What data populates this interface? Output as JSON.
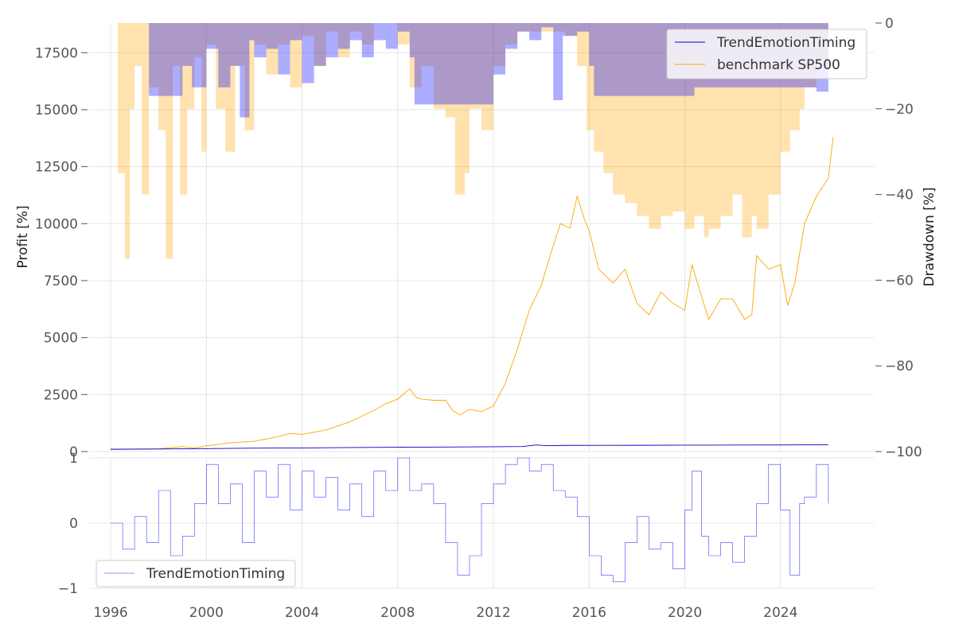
{
  "chart_data": [
    {
      "id": "profit_drawdown",
      "type": "line",
      "title": "",
      "xlabel": "",
      "ylabel": "Profit [%]",
      "y2label": "Drawdown [%]",
      "xlim": [
        1995.1,
        2027.9
      ],
      "ylim": [
        0,
        18800
      ],
      "y2lim": [
        -100,
        0
      ],
      "grid": true,
      "legend_location": "top-right",
      "y_ticks": [
        0,
        2500,
        5000,
        7500,
        10000,
        12500,
        15000,
        17500
      ],
      "y_tick_labels": [
        "0",
        "2500",
        "5000",
        "7500",
        "10000",
        "12500",
        "15000",
        "17500"
      ],
      "y2_ticks": [
        0,
        -20,
        -40,
        -60,
        -80,
        -100
      ],
      "y2_tick_labels": [
        "0",
        "−20",
        "−40",
        "−60",
        "−80",
        "−100"
      ],
      "series": [
        {
          "name": "TrendEmotionTiming",
          "role": "profit",
          "color": "#0000cc",
          "x": [
            1996.0,
            1998.0,
            2000.0,
            2002.0,
            2004.0,
            2006.0,
            2008.0,
            2010.0,
            2012.0,
            2013.2,
            2013.8,
            2014.2,
            2015.0,
            2018.0,
            2020.0,
            2022.0,
            2024.0,
            2026.0
          ],
          "values": [
            100,
            110,
            130,
            150,
            160,
            175,
            190,
            200,
            210,
            220,
            290,
            260,
            270,
            275,
            280,
            285,
            290,
            300
          ]
        },
        {
          "name": "benchmark SP500",
          "role": "profit",
          "color": "#ffa500",
          "x": [
            1996.0,
            1997.0,
            1998.0,
            1999.0,
            1999.5,
            2000.0,
            2001.0,
            2002.0,
            2003.0,
            2003.5,
            2004.0,
            2005.0,
            2006.0,
            2007.0,
            2007.5,
            2008.0,
            2008.5,
            2008.8,
            2009.0,
            2009.5,
            2010.0,
            2010.3,
            2010.6,
            2011.0,
            2011.5,
            2012.0,
            2012.5,
            2013.0,
            2013.5,
            2014.0,
            2014.4,
            2014.8,
            2015.2,
            2015.5,
            2015.8,
            2016.0,
            2016.4,
            2017.0,
            2017.5,
            2018.0,
            2018.5,
            2019.0,
            2019.5,
            2020.0,
            2020.3,
            2020.7,
            2021.0,
            2021.5,
            2022.0,
            2022.5,
            2022.8,
            2023.0,
            2023.5,
            2024.0,
            2024.3,
            2024.6,
            2025.0,
            2025.5,
            2026.0,
            2026.2
          ],
          "values": [
            100,
            110,
            120,
            220,
            160,
            250,
            380,
            450,
            650,
            800,
            750,
            950,
            1300,
            1800,
            2100,
            2300,
            2750,
            2350,
            2300,
            2250,
            2250,
            1800,
            1600,
            1850,
            1750,
            2000,
            3000,
            4500,
            6200,
            7300,
            8700,
            10000,
            9800,
            11200,
            10200,
            9700,
            8000,
            7400,
            8000,
            6500,
            6000,
            7000,
            6500,
            6200,
            8200,
            6800,
            5800,
            6700,
            6700,
            5800,
            6000,
            8600,
            8000,
            8200,
            6400,
            7400,
            10000,
            11200,
            12000,
            13800
          ]
        },
        {
          "name": "TrendEmotionTiming drawdown",
          "role": "drawdown",
          "color": "#0000ff",
          "x": [
            1996.0,
            1997.5,
            1997.6,
            1998.5,
            1999.0,
            1999.4,
            2000.0,
            2000.5,
            2001.0,
            2001.4,
            2001.8,
            2002.0,
            2002.5,
            2003.0,
            2003.5,
            2004.0,
            2004.5,
            2005.0,
            2005.5,
            2006.0,
            2006.5,
            2007.0,
            2007.5,
            2008.0,
            2008.5,
            2008.7,
            2010.0,
            2011.0,
            2012.0,
            2012.5,
            2013.0,
            2013.5,
            2014.0,
            2014.5,
            2014.9,
            2015.5,
            2016.0,
            2016.2,
            2017.0,
            2018.0,
            2019.0,
            2020.0,
            2020.4,
            2021.0,
            2021.5,
            2022.0,
            2023.0,
            2024.0,
            2024.5,
            2025.0,
            2025.5,
            2026.0
          ],
          "values": [
            0,
            0,
            -17,
            -17,
            -10,
            -15,
            -6,
            -15,
            -10,
            -22,
            -4,
            -8,
            -6,
            -12,
            -4,
            -14,
            -10,
            -8,
            -6,
            -4,
            -8,
            -4,
            -6,
            -2,
            -8,
            -19,
            -19,
            -19,
            -12,
            -6,
            -2,
            -4,
            -1,
            -18,
            -3,
            -2,
            -10,
            -17,
            -17,
            -17,
            -17,
            -17,
            -15,
            -15,
            -15,
            -15,
            -15,
            -15,
            -15,
            -15,
            -16,
            -16
          ]
        },
        {
          "name": "benchmark SP500 drawdown",
          "role": "drawdown",
          "color": "#ffa500",
          "x": [
            1996.0,
            1996.3,
            1996.6,
            1996.8,
            1997.0,
            1997.3,
            1997.6,
            1998.0,
            1998.3,
            1998.6,
            1998.9,
            1999.2,
            1999.5,
            1999.8,
            2000.0,
            2000.4,
            2000.8,
            2001.2,
            2001.6,
            2002.0,
            2002.5,
            2003.0,
            2003.5,
            2004.0,
            2004.5,
            2005.0,
            2005.5,
            2006.0,
            2006.5,
            2007.0,
            2008.0,
            2008.5,
            2009.0,
            2009.5,
            2010.0,
            2010.4,
            2010.8,
            2011.0,
            2011.5,
            2012.0,
            2012.5,
            2013.0,
            2014.0,
            2015.0,
            2015.5,
            2015.9,
            2016.2,
            2016.6,
            2017.0,
            2017.5,
            2018.0,
            2018.5,
            2019.0,
            2019.5,
            2020.0,
            2020.4,
            2020.8,
            2021.0,
            2021.5,
            2022.0,
            2022.4,
            2022.8,
            2023.0,
            2023.5,
            2024.0,
            2024.4,
            2024.8,
            2025.0,
            2025.5,
            2026.0
          ],
          "values": [
            0,
            -35,
            -55,
            -20,
            -10,
            -40,
            -15,
            -25,
            -55,
            -10,
            -40,
            -20,
            -8,
            -30,
            -5,
            -20,
            -30,
            -10,
            -25,
            -5,
            -12,
            -5,
            -15,
            -3,
            -10,
            -2,
            -8,
            -2,
            -5,
            0,
            -5,
            -15,
            -10,
            -20,
            -22,
            -40,
            -35,
            -20,
            -25,
            -10,
            -5,
            -2,
            -2,
            -3,
            -10,
            -25,
            -30,
            -35,
            -40,
            -42,
            -45,
            -48,
            -45,
            -44,
            -48,
            -45,
            -50,
            -48,
            -45,
            -40,
            -50,
            -45,
            -48,
            -40,
            -30,
            -25,
            -20,
            -15,
            -10,
            -2
          ]
        }
      ]
    },
    {
      "id": "timing_signal",
      "type": "line",
      "title": "",
      "xlabel": "",
      "ylabel": "",
      "xlim": [
        1995.1,
        2027.9
      ],
      "ylim": [
        -1,
        1
      ],
      "grid": true,
      "legend_location": "bottom-left",
      "x_ticks": [
        1996,
        2000,
        2004,
        2008,
        2012,
        2016,
        2020,
        2024
      ],
      "x_tick_labels": [
        "1996",
        "2000",
        "2004",
        "2008",
        "2012",
        "2016",
        "2020",
        "2024"
      ],
      "y_ticks": [
        1,
        0,
        -1
      ],
      "y_tick_labels": [
        "1",
        "0",
        "−1"
      ],
      "series": [
        {
          "name": "TrendEmotionTiming",
          "color": "#0000ff",
          "x": [
            1996.0,
            1996.5,
            1997.0,
            1997.5,
            1998.0,
            1998.5,
            1999.0,
            1999.5,
            2000.0,
            2000.5,
            2001.0,
            2001.5,
            2002.0,
            2002.5,
            2003.0,
            2003.5,
            2004.0,
            2004.5,
            2005.0,
            2005.5,
            2006.0,
            2006.5,
            2007.0,
            2007.5,
            2008.0,
            2008.5,
            2009.0,
            2009.5,
            2010.0,
            2010.5,
            2011.0,
            2011.5,
            2012.0,
            2012.5,
            2013.0,
            2013.5,
            2014.0,
            2014.5,
            2015.0,
            2015.5,
            2016.0,
            2016.5,
            2017.0,
            2017.5,
            2018.0,
            2018.5,
            2019.0,
            2019.5,
            2020.0,
            2020.3,
            2020.7,
            2021.0,
            2021.5,
            2022.0,
            2022.5,
            2023.0,
            2023.5,
            2024.0,
            2024.4,
            2024.8,
            2025.0,
            2025.5,
            2026.0
          ],
          "values": [
            0,
            -0.4,
            0.1,
            -0.3,
            0.5,
            -0.5,
            -0.2,
            0.3,
            0.9,
            0.3,
            0.6,
            -0.3,
            0.8,
            0.4,
            0.9,
            0.2,
            0.8,
            0.4,
            0.7,
            0.2,
            0.6,
            0.1,
            0.8,
            0.5,
            1.0,
            0.5,
            0.6,
            0.3,
            -0.3,
            -0.8,
            -0.5,
            0.3,
            0.6,
            0.9,
            1.0,
            0.8,
            0.9,
            0.5,
            0.4,
            0.1,
            -0.5,
            -0.8,
            -0.9,
            -0.3,
            0.1,
            -0.4,
            -0.3,
            -0.7,
            0.2,
            0.8,
            -0.2,
            -0.5,
            -0.3,
            -0.6,
            -0.2,
            0.3,
            0.9,
            0.2,
            -0.8,
            0.3,
            0.4,
            0.9,
            0.3
          ]
        }
      ]
    }
  ]
}
